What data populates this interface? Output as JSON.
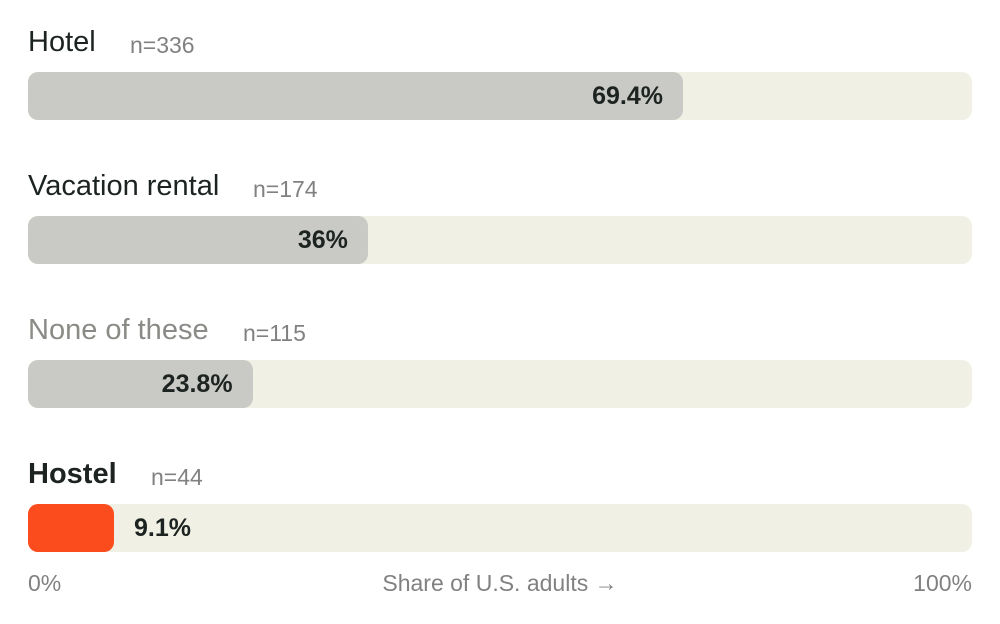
{
  "chart_data": {
    "type": "bar",
    "orientation": "horizontal",
    "categories": [
      "Hotel",
      "Vacation rental",
      "None of these",
      "Hostel"
    ],
    "series": [
      {
        "values": [
          69.4,
          36,
          23.8,
          9.1
        ],
        "value_labels": [
          "69.4%",
          "36%",
          "23.8%",
          "9.1%"
        ]
      }
    ],
    "sample_sizes": [
      "n=336",
      "n=174",
      "n=115",
      "n=44"
    ],
    "highlighted_category": "Hostel",
    "muted_category": "None of these",
    "xlabel": "Share of U.S. adults →",
    "xlim": [
      0,
      100
    ],
    "tick_labels": {
      "min": "0%",
      "max": "100%"
    },
    "grid": false,
    "legend": "none",
    "colors": {
      "bar": "#c9cac5",
      "highlight": "#fa4c1c",
      "track": "#f1f0e5",
      "text": "#1c2320",
      "muted_text": "#808280"
    }
  }
}
